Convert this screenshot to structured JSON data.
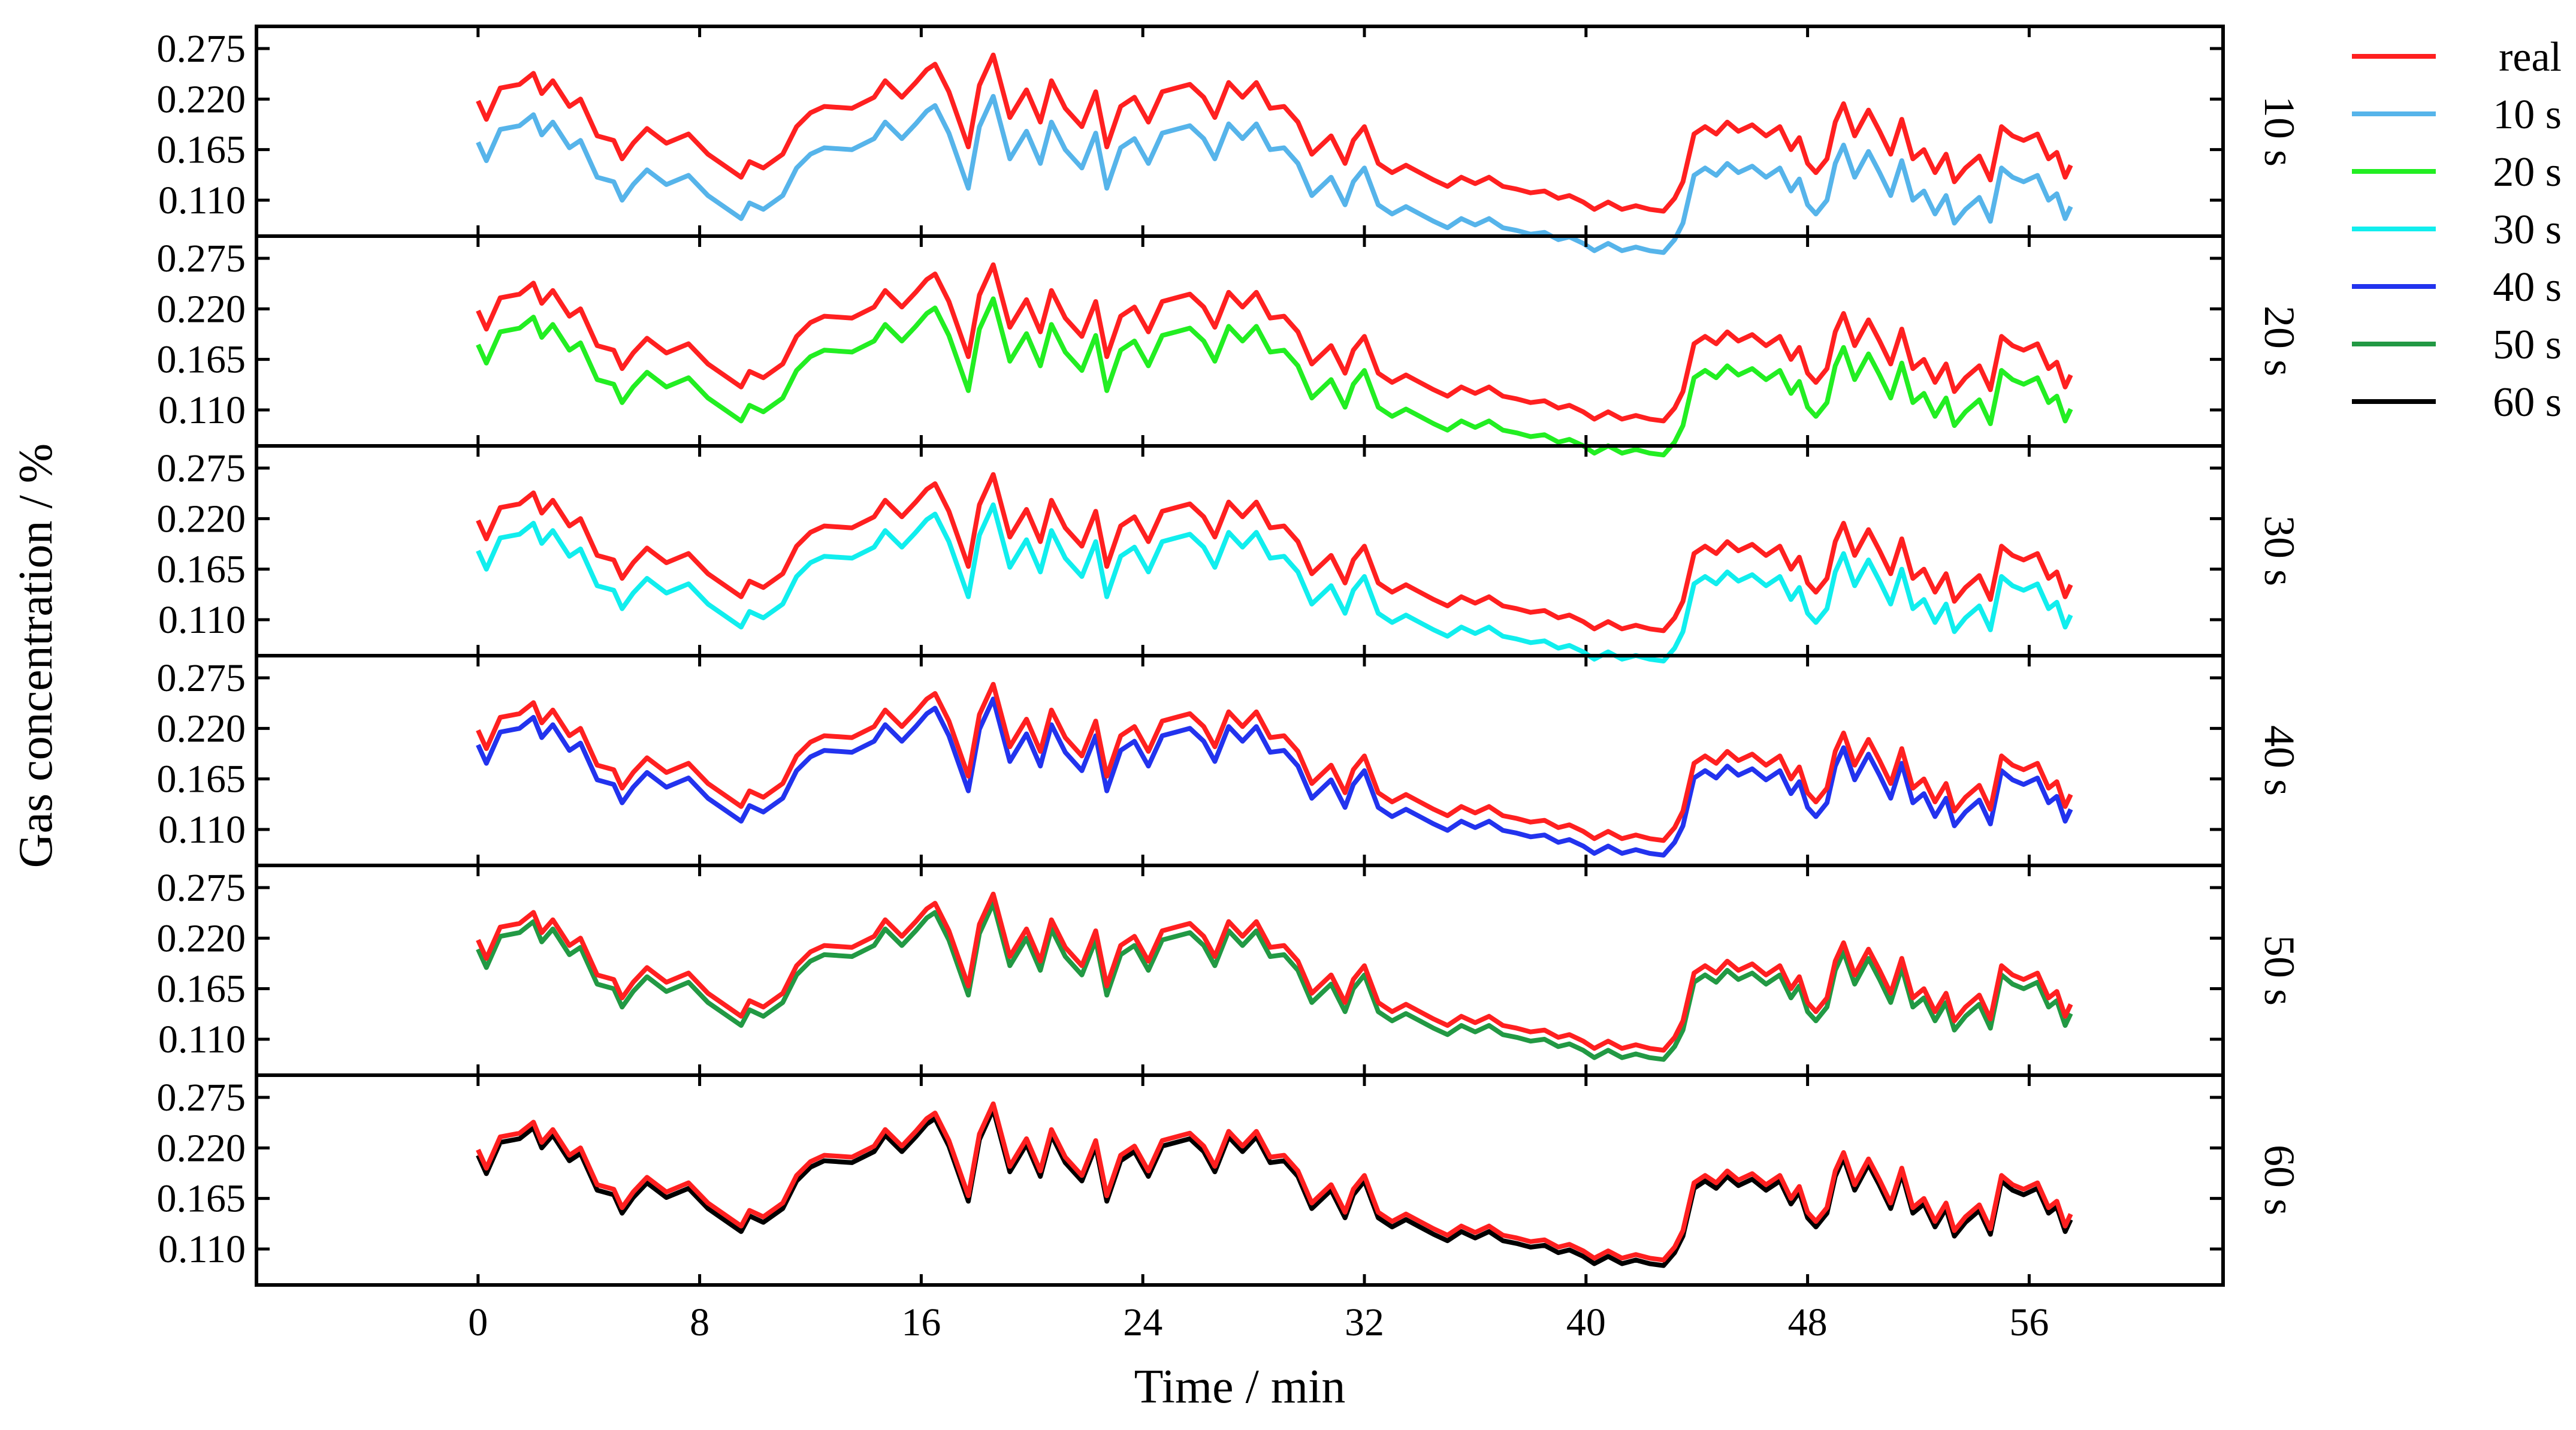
{
  "chart_data": {
    "type": "line",
    "layout": "stacked-panels",
    "xlabel": "Time / min",
    "ylabel": "Gas concentration / %",
    "xlim": [
      -8,
      63
    ],
    "ylim": [
      0.08,
      0.29
    ],
    "x_ticks": [
      0,
      8,
      16,
      24,
      32,
      40,
      48,
      56
    ],
    "y_ticks": [
      "0.275",
      "0.220",
      "0.165",
      "0.110"
    ],
    "legend": [
      {
        "name": "real",
        "color": "#ff2020"
      },
      {
        "name": "10 s",
        "color": "#56b4ea"
      },
      {
        "name": "20 s",
        "color": "#22ee22"
      },
      {
        "name": "30 s",
        "color": "#11eeee"
      },
      {
        "name": "40 s",
        "color": "#2233ee"
      },
      {
        "name": "50 s",
        "color": "#229944"
      },
      {
        "name": "60 s",
        "color": "#000000"
      }
    ],
    "real_series": {
      "name": "real",
      "color": "#ff2020",
      "x": [
        0,
        0.3,
        0.8,
        1.5,
        2.0,
        2.3,
        2.7,
        3.3,
        3.7,
        4.3,
        4.9,
        5.2,
        5.6,
        6.1,
        6.8,
        7.6,
        8.3,
        9.5,
        9.8,
        10.3,
        11.0,
        11.5,
        12.0,
        12.5,
        13.5,
        14.3,
        14.7,
        15.3,
        15.8,
        16.2,
        16.5,
        17.0,
        17.7,
        18.1,
        18.6,
        19.2,
        19.8,
        20.3,
        20.7,
        21.2,
        21.8,
        22.3,
        22.7,
        23.2,
        23.7,
        24.2,
        24.7,
        25.2,
        25.7,
        26.2,
        26.6,
        27.1,
        27.6,
        28.1,
        28.6,
        29.1,
        29.6,
        30.1,
        30.8,
        31.3,
        31.6,
        32.0,
        32.5,
        33.0,
        33.5,
        34.0,
        34.5,
        35.0,
        35.5,
        36.0,
        36.5,
        37.0,
        37.5,
        38.0,
        38.5,
        39.0,
        39.4,
        39.9,
        40.3,
        40.8,
        41.3,
        41.8,
        42.3,
        42.8,
        43.2,
        43.5,
        43.9,
        44.3,
        44.7,
        45.1,
        45.5,
        46.0,
        46.5,
        47.0,
        47.4,
        47.7,
        48.0,
        48.3,
        48.7,
        49.0,
        49.3,
        49.7,
        50.2,
        50.6,
        51.0,
        51.4,
        51.8,
        52.2,
        52.6,
        53.0,
        53.3,
        53.7,
        54.2,
        54.6,
        55.0,
        55.4,
        55.8,
        56.3,
        56.7,
        57.0,
        57.3,
        57.5
      ],
      "y": [
        0.218,
        0.198,
        0.232,
        0.236,
        0.248,
        0.226,
        0.24,
        0.212,
        0.22,
        0.18,
        0.175,
        0.155,
        0.172,
        0.188,
        0.172,
        0.182,
        0.16,
        0.135,
        0.152,
        0.145,
        0.16,
        0.19,
        0.205,
        0.212,
        0.21,
        0.222,
        0.24,
        0.222,
        0.238,
        0.252,
        0.258,
        0.228,
        0.168,
        0.235,
        0.268,
        0.2,
        0.23,
        0.195,
        0.24,
        0.21,
        0.19,
        0.228,
        0.168,
        0.212,
        0.222,
        0.195,
        0.228,
        0.232,
        0.236,
        0.222,
        0.2,
        0.238,
        0.222,
        0.238,
        0.21,
        0.212,
        0.195,
        0.16,
        0.18,
        0.15,
        0.175,
        0.19,
        0.15,
        0.14,
        0.148,
        0.14,
        0.132,
        0.125,
        0.135,
        0.128,
        0.135,
        0.125,
        0.122,
        0.118,
        0.12,
        0.112,
        0.115,
        0.108,
        0.1,
        0.108,
        0.1,
        0.104,
        0.1,
        0.098,
        0.112,
        0.13,
        0.182,
        0.19,
        0.182,
        0.195,
        0.185,
        0.192,
        0.18,
        0.19,
        0.165,
        0.178,
        0.15,
        0.14,
        0.155,
        0.195,
        0.215,
        0.18,
        0.208,
        0.185,
        0.16,
        0.198,
        0.155,
        0.165,
        0.14,
        0.16,
        0.13,
        0.145,
        0.158,
        0.132,
        0.19,
        0.18,
        0.175,
        0.182,
        0.155,
        0.162,
        0.135,
        0.148
      ]
    },
    "panels": [
      {
        "label": "10 s",
        "series": "10 s",
        "color": "#56b4ea",
        "offset": -0.045
      },
      {
        "label": "20 s",
        "series": "20 s",
        "color": "#22ee22",
        "offset": -0.037
      },
      {
        "label": "30 s",
        "series": "30 s",
        "color": "#11eeee",
        "offset": -0.033
      },
      {
        "label": "40 s",
        "series": "40 s",
        "color": "#2233ee",
        "offset": -0.016
      },
      {
        "label": "50 s",
        "series": "50 s",
        "color": "#229944",
        "offset": -0.01
      },
      {
        "label": "60 s",
        "series": "60 s",
        "color": "#000000",
        "offset": -0.006
      }
    ]
  }
}
